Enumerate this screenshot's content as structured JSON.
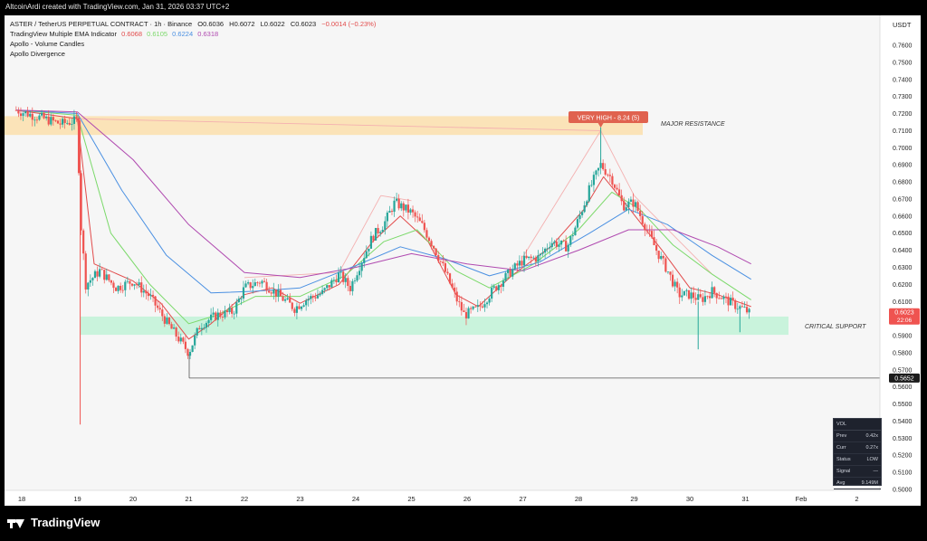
{
  "header": {
    "credit": "AltcoinArdi created with TradingView.com, Jan 31, 2026 03:37 UTC+2"
  },
  "legend": {
    "symbol": "ASTER / TetherUS PERPETUAL CONTRACT · 1h · Binance",
    "open": "O0.6036",
    "high": "H0.6072",
    "low": "L0.6022",
    "close": "C0.6023",
    "change": "−0.0014 (−0.23%)",
    "ema_name": "TradingView Multiple EMA Indicator",
    "ema_values": [
      {
        "text": "0.6068",
        "color": "#e24b4b"
      },
      {
        "text": "0.6105",
        "color": "#7bd96a"
      },
      {
        "text": "0.6224",
        "color": "#4a90e2"
      },
      {
        "text": "0.6318",
        "color": "#b04ab0"
      }
    ],
    "line3": "Apollo - Volume Candles",
    "line4": "Apollo Divergence"
  },
  "currency": "USDT",
  "annotations": {
    "very_high": "VERY HIGH - 8.24 (5)",
    "major_resistance": "MAJOR RESISTANCE",
    "critical_support": "CRITICAL SUPPORT"
  },
  "price_labels": {
    "current": "0.6023",
    "countdown": "22:06",
    "level": "0.5652"
  },
  "vol_panel": {
    "title": "VOL",
    "rows": [
      {
        "k": "Prev",
        "v": "0.42x"
      },
      {
        "k": "Curr",
        "v": "0.27x"
      },
      {
        "k": "Status",
        "v": "LOW"
      },
      {
        "k": "Signal",
        "v": "—"
      },
      {
        "k": "Avg",
        "v": "9.149M"
      }
    ]
  },
  "brand": "TradingView",
  "colors": {
    "up": "#26a69a",
    "down": "#ef5350",
    "ema1": "#e24b4b",
    "ema2": "#7bd96a",
    "ema3": "#4a90e2",
    "ema4": "#b04ab0",
    "resistance_zone": "#fbe3b8",
    "support_zone": "#c9f3dc",
    "very_high": "#e0624f"
  },
  "chart_data": {
    "type": "line",
    "ylim": [
      0.5,
      0.77
    ],
    "y_ticks": [
      "0.7600",
      "0.7500",
      "0.7400",
      "0.7300",
      "0.7200",
      "0.7100",
      "0.7000",
      "0.6900",
      "0.6800",
      "0.6700",
      "0.6600",
      "0.6500",
      "0.6400",
      "0.6300",
      "0.6200",
      "0.6100",
      "0.6000",
      "0.5900",
      "0.5800",
      "0.5700",
      "0.5600",
      "0.5500",
      "0.5400",
      "0.5300",
      "0.5200",
      "0.5100",
      "0.5000"
    ],
    "x_ticks": [
      "18",
      "19",
      "20",
      "21",
      "22",
      "23",
      "24",
      "25",
      "26",
      "27",
      "28",
      "29",
      "30",
      "31",
      "Feb",
      "2"
    ],
    "zones": {
      "resistance": [
        0.7075,
        0.7185
      ],
      "support": [
        0.5905,
        0.6012
      ]
    },
    "support_line": 0.5652,
    "price_path": [
      [
        17.9,
        0.722
      ],
      [
        18.3,
        0.718
      ],
      [
        18.7,
        0.714
      ],
      [
        19.0,
        0.716
      ],
      [
        19.05,
        0.66
      ],
      [
        19.15,
        0.62
      ],
      [
        19.4,
        0.628
      ],
      [
        19.7,
        0.618
      ],
      [
        20.0,
        0.622
      ],
      [
        20.3,
        0.613
      ],
      [
        20.6,
        0.598
      ],
      [
        20.8,
        0.589
      ],
      [
        21.0,
        0.58
      ],
      [
        21.2,
        0.596
      ],
      [
        21.5,
        0.602
      ],
      [
        21.8,
        0.604
      ],
      [
        22.0,
        0.618
      ],
      [
        22.3,
        0.622
      ],
      [
        22.6,
        0.614
      ],
      [
        22.9,
        0.606
      ],
      [
        23.1,
        0.611
      ],
      [
        23.4,
        0.615
      ],
      [
        23.7,
        0.626
      ],
      [
        23.9,
        0.618
      ],
      [
        24.0,
        0.626
      ],
      [
        24.3,
        0.648
      ],
      [
        24.5,
        0.655
      ],
      [
        24.7,
        0.668
      ],
      [
        25.0,
        0.662
      ],
      [
        25.2,
        0.654
      ],
      [
        25.4,
        0.642
      ],
      [
        25.6,
        0.628
      ],
      [
        25.8,
        0.612
      ],
      [
        25.95,
        0.602
      ],
      [
        26.2,
        0.606
      ],
      [
        26.5,
        0.618
      ],
      [
        26.8,
        0.628
      ],
      [
        27.0,
        0.634
      ],
      [
        27.3,
        0.636
      ],
      [
        27.5,
        0.645
      ],
      [
        27.8,
        0.642
      ],
      [
        28.0,
        0.658
      ],
      [
        28.2,
        0.676
      ],
      [
        28.4,
        0.69
      ],
      [
        28.6,
        0.682
      ],
      [
        28.8,
        0.666
      ],
      [
        29.0,
        0.668
      ],
      [
        29.2,
        0.654
      ],
      [
        29.4,
        0.64
      ],
      [
        29.6,
        0.628
      ],
      [
        29.8,
        0.614
      ],
      [
        30.0,
        0.614
      ],
      [
        30.2,
        0.611
      ],
      [
        30.4,
        0.616
      ],
      [
        30.6,
        0.612
      ],
      [
        30.8,
        0.608
      ],
      [
        31.0,
        0.605
      ],
      [
        31.1,
        0.6023
      ]
    ],
    "series": [
      {
        "name": "0.6068",
        "color": "#e24b4b",
        "values": [
          [
            17.9,
            0.722
          ],
          [
            19.0,
            0.717
          ],
          [
            19.3,
            0.632
          ],
          [
            20.0,
            0.622
          ],
          [
            20.5,
            0.609
          ],
          [
            21.0,
            0.588
          ],
          [
            21.4,
            0.597
          ],
          [
            22.0,
            0.614
          ],
          [
            22.5,
            0.618
          ],
          [
            23.0,
            0.609
          ],
          [
            23.7,
            0.62
          ],
          [
            24.3,
            0.645
          ],
          [
            24.8,
            0.66
          ],
          [
            25.3,
            0.645
          ],
          [
            25.8,
            0.614
          ],
          [
            26.2,
            0.607
          ],
          [
            26.8,
            0.625
          ],
          [
            27.5,
            0.642
          ],
          [
            28.1,
            0.664
          ],
          [
            28.45,
            0.683
          ],
          [
            28.9,
            0.665
          ],
          [
            29.5,
            0.64
          ],
          [
            30.0,
            0.618
          ],
          [
            30.5,
            0.614
          ],
          [
            31.1,
            0.607
          ]
        ]
      },
      {
        "name": "0.6105",
        "color": "#7bd96a",
        "values": [
          [
            17.9,
            0.722
          ],
          [
            19.0,
            0.719
          ],
          [
            19.6,
            0.65
          ],
          [
            20.3,
            0.62
          ],
          [
            21.0,
            0.597
          ],
          [
            21.5,
            0.602
          ],
          [
            22.2,
            0.613
          ],
          [
            23.0,
            0.613
          ],
          [
            23.8,
            0.625
          ],
          [
            24.5,
            0.645
          ],
          [
            25.1,
            0.652
          ],
          [
            25.8,
            0.628
          ],
          [
            26.4,
            0.618
          ],
          [
            27.2,
            0.632
          ],
          [
            28.0,
            0.652
          ],
          [
            28.6,
            0.674
          ],
          [
            29.1,
            0.664
          ],
          [
            29.7,
            0.643
          ],
          [
            30.4,
            0.626
          ],
          [
            31.1,
            0.611
          ]
        ]
      },
      {
        "name": "0.6224",
        "color": "#4a90e2",
        "values": [
          [
            17.9,
            0.722
          ],
          [
            19.0,
            0.72
          ],
          [
            19.8,
            0.675
          ],
          [
            20.6,
            0.637
          ],
          [
            21.4,
            0.615
          ],
          [
            22.2,
            0.616
          ],
          [
            23.0,
            0.618
          ],
          [
            24.0,
            0.631
          ],
          [
            24.8,
            0.642
          ],
          [
            25.6,
            0.635
          ],
          [
            26.4,
            0.625
          ],
          [
            27.3,
            0.633
          ],
          [
            28.2,
            0.65
          ],
          [
            28.9,
            0.664
          ],
          [
            29.6,
            0.655
          ],
          [
            30.4,
            0.637
          ],
          [
            31.1,
            0.623
          ]
        ]
      },
      {
        "name": "0.6318",
        "color": "#b04ab0",
        "values": [
          [
            17.9,
            0.722
          ],
          [
            19.0,
            0.721
          ],
          [
            20.0,
            0.693
          ],
          [
            21.0,
            0.655
          ],
          [
            22.0,
            0.627
          ],
          [
            23.0,
            0.624
          ],
          [
            24.0,
            0.63
          ],
          [
            25.0,
            0.638
          ],
          [
            26.0,
            0.632
          ],
          [
            27.0,
            0.628
          ],
          [
            28.0,
            0.64
          ],
          [
            28.9,
            0.652
          ],
          [
            29.7,
            0.652
          ],
          [
            30.5,
            0.642
          ],
          [
            31.1,
            0.632
          ]
        ]
      }
    ]
  }
}
